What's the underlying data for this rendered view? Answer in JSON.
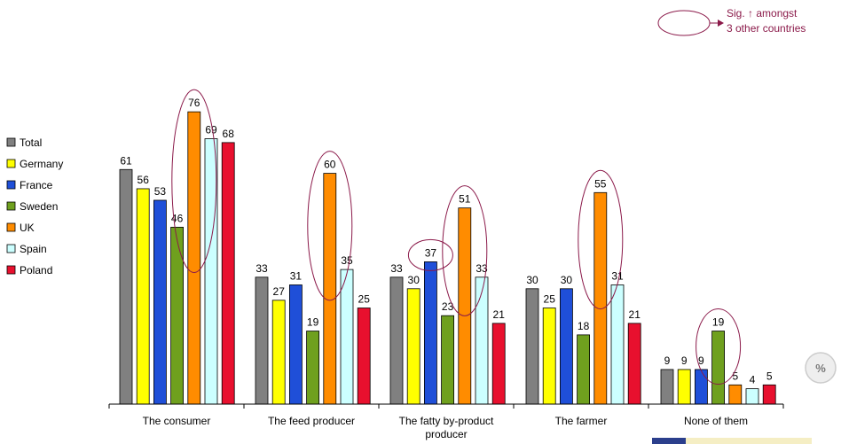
{
  "chart_data": {
    "type": "bar",
    "categories": [
      "The consumer",
      "The feed producer",
      "The fatty by-product producer",
      "The farmer",
      "None of them"
    ],
    "category_lines": [
      [
        "The consumer"
      ],
      [
        "The feed producer"
      ],
      [
        "The fatty by-product",
        "producer"
      ],
      [
        "The farmer"
      ],
      [
        "None of them"
      ]
    ],
    "series": [
      {
        "name": "Total",
        "color": "#808080",
        "values": [
          61,
          33,
          33,
          30,
          9
        ]
      },
      {
        "name": "Germany",
        "color": "#ffff00",
        "values": [
          56,
          27,
          30,
          25,
          9
        ]
      },
      {
        "name": "France",
        "color": "#1f4fd8",
        "values": [
          53,
          31,
          37,
          30,
          9
        ]
      },
      {
        "name": "Sweden",
        "color": "#6fa01e",
        "values": [
          46,
          19,
          23,
          18,
          19
        ]
      },
      {
        "name": "UK",
        "color": "#ff8c00",
        "values": [
          76,
          60,
          51,
          55,
          5
        ]
      },
      {
        "name": "Spain",
        "color": "#ccffff",
        "values": [
          69,
          35,
          33,
          31,
          4
        ]
      },
      {
        "name": "Poland",
        "color": "#e8102e",
        "values": [
          68,
          25,
          21,
          21,
          5
        ]
      }
    ],
    "ylim": [
      0,
      80
    ],
    "grid": false,
    "legend_position": "left",
    "highlight_color": "#8b1a4a",
    "highlighted": [
      {
        "category": 0,
        "series": [
          4
        ]
      },
      {
        "category": 1,
        "series": [
          4
        ]
      },
      {
        "category": 2,
        "series": [
          2
        ]
      },
      {
        "category": 2,
        "series": [
          4
        ]
      },
      {
        "category": 3,
        "series": [
          4
        ]
      },
      {
        "category": 4,
        "series": [
          3
        ]
      }
    ],
    "key": {
      "line1": "Sig. ↑ amongst",
      "line2": "3 other countries"
    },
    "unit_badge": "%"
  }
}
